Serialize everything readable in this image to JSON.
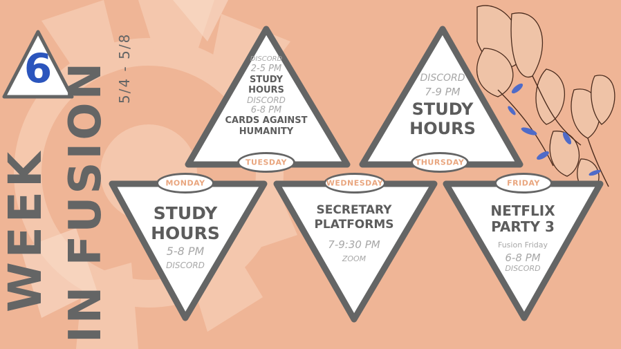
{
  "banner": {
    "line1": "WEEK",
    "line2": "IN FUSION",
    "week_number": "6",
    "dates": "5/4 - 5/8"
  },
  "days": {
    "monday": {
      "label": "MONDAY",
      "title_line1": "STUDY",
      "title_line2": "HOURS",
      "time": "5-8 PM",
      "place": "DISCORD"
    },
    "tuesday": {
      "label": "TUESDAY",
      "place1": "DISCORD",
      "time1": "2-5 PM",
      "title1_line1": "STUDY",
      "title1_line2": "HOURS",
      "place2": "DISCORD",
      "time2": "6-8 PM",
      "title2_line1": "CARDS AGAINST",
      "title2_line2": "HUMANITY"
    },
    "wednesday": {
      "label": "WEDNESDAY",
      "title_line1": "SECRETARY",
      "title_line2": "PLATFORMS",
      "time": "7-9:30 PM",
      "place": "ZOOM"
    },
    "thursday": {
      "label": "THURSDAY",
      "place": "DISCORD",
      "time": "7-9 PM",
      "title_line1": "STUDY",
      "title_line2": "HOURS"
    },
    "friday": {
      "label": "FRIDAY",
      "title_line1": "NETFLIX",
      "title_line2": "PARTY 3",
      "subtitle": "Fusion Friday",
      "time": "6-8 PM",
      "place": "DISCORD"
    }
  }
}
